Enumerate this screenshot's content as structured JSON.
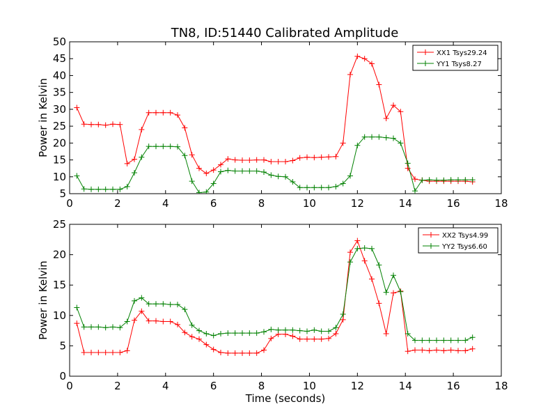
{
  "figure": {
    "title": "TN8, ID:51440 Calibrated Amplitude"
  },
  "chart_data": [
    {
      "type": "line",
      "title": "TN8, ID:51440 Calibrated Amplitude",
      "xlabel": "",
      "ylabel": "Power in Kelvin",
      "xlim": [
        0,
        18
      ],
      "ylim": [
        5,
        50
      ],
      "xticks": [
        "0",
        "2",
        "4",
        "6",
        "8",
        "10",
        "12",
        "14",
        "16",
        "18"
      ],
      "yticks": [
        "5",
        "10",
        "15",
        "20",
        "25",
        "30",
        "35",
        "40",
        "45",
        "50"
      ],
      "grid": false,
      "legend_position": "top-right",
      "x": [
        0.3,
        0.6,
        0.9,
        1.2,
        1.5,
        1.8,
        2.1,
        2.4,
        2.7,
        3.0,
        3.3,
        3.6,
        3.9,
        4.2,
        4.5,
        4.8,
        5.1,
        5.4,
        5.7,
        6.0,
        6.3,
        6.6,
        6.9,
        7.2,
        7.5,
        7.8,
        8.1,
        8.4,
        8.7,
        9.0,
        9.3,
        9.6,
        9.9,
        10.2,
        10.5,
        10.8,
        11.1,
        11.4,
        11.7,
        12.0,
        12.3,
        12.6,
        12.9,
        13.2,
        13.5,
        13.8,
        14.1,
        14.4,
        14.7,
        15.0,
        15.3,
        15.6,
        15.9,
        16.2,
        16.5,
        16.8
      ],
      "series": [
        {
          "name": "XX1 Tsys29.24",
          "color": "#ff0000",
          "values": [
            30.5,
            25.6,
            25.5,
            25.5,
            25.3,
            25.6,
            25.5,
            13.9,
            15.2,
            24.0,
            29.0,
            29.0,
            29.0,
            29.0,
            28.3,
            24.5,
            16.5,
            12.5,
            11.0,
            12.0,
            13.6,
            15.3,
            15.0,
            14.9,
            14.9,
            15.0,
            15.0,
            14.5,
            14.5,
            14.5,
            14.8,
            15.6,
            15.8,
            15.7,
            15.8,
            15.9,
            16.0,
            20.0,
            40.3,
            45.7,
            45.0,
            43.5,
            37.3,
            27.3,
            31.2,
            29.3,
            12.5,
            9.3,
            9.0,
            8.7,
            8.7,
            8.7,
            8.7,
            8.7,
            8.7,
            8.5
          ]
        },
        {
          "name": "YY1 Tsys8.27",
          "color": "#008000",
          "values": [
            10.3,
            6.4,
            6.3,
            6.3,
            6.3,
            6.3,
            6.3,
            7.1,
            11.2,
            15.8,
            19.0,
            19.0,
            19.0,
            19.0,
            18.9,
            16.3,
            8.7,
            5.3,
            5.5,
            8.0,
            11.5,
            11.9,
            11.7,
            11.7,
            11.7,
            11.7,
            11.4,
            10.5,
            10.1,
            10.0,
            8.5,
            6.8,
            6.8,
            6.8,
            6.8,
            6.8,
            7.1,
            8.0,
            10.3,
            19.3,
            21.8,
            21.8,
            21.8,
            21.6,
            21.4,
            20.0,
            14.0,
            5.8,
            9.0,
            9.1,
            9.0,
            9.0,
            9.1,
            9.1,
            9.1,
            9.1
          ]
        }
      ]
    },
    {
      "type": "line",
      "title": "",
      "xlabel": "Time (seconds)",
      "ylabel": "Power in Kelvin",
      "xlim": [
        0,
        18
      ],
      "ylim": [
        0,
        25
      ],
      "xticks": [
        "0",
        "2",
        "4",
        "6",
        "8",
        "10",
        "12",
        "14",
        "16",
        "18"
      ],
      "yticks": [
        "0",
        "5",
        "10",
        "15",
        "20",
        "25"
      ],
      "grid": false,
      "legend_position": "top-right",
      "x": [
        0.3,
        0.6,
        0.9,
        1.2,
        1.5,
        1.8,
        2.1,
        2.4,
        2.7,
        3.0,
        3.3,
        3.6,
        3.9,
        4.2,
        4.5,
        4.8,
        5.1,
        5.4,
        5.7,
        6.0,
        6.3,
        6.6,
        6.9,
        7.2,
        7.5,
        7.8,
        8.1,
        8.4,
        8.7,
        9.0,
        9.3,
        9.6,
        9.9,
        10.2,
        10.5,
        10.8,
        11.1,
        11.4,
        11.7,
        12.0,
        12.3,
        12.6,
        12.9,
        13.2,
        13.5,
        13.8,
        14.1,
        14.4,
        14.7,
        15.0,
        15.3,
        15.6,
        15.9,
        16.2,
        16.5,
        16.8
      ],
      "series": [
        {
          "name": "XX2 Tsys4.99",
          "color": "#ff0000",
          "values": [
            8.7,
            3.9,
            3.9,
            3.9,
            3.9,
            3.9,
            3.9,
            4.2,
            9.2,
            10.7,
            9.1,
            9.1,
            9.0,
            9.0,
            8.5,
            7.2,
            6.5,
            6.1,
            5.2,
            4.4,
            3.9,
            3.8,
            3.8,
            3.8,
            3.8,
            3.8,
            4.3,
            6.2,
            6.9,
            6.9,
            6.6,
            6.1,
            6.1,
            6.1,
            6.1,
            6.2,
            7.0,
            9.3,
            20.4,
            22.3,
            19.0,
            16.0,
            12.0,
            7.0,
            13.7,
            14.0,
            4.1,
            4.3,
            4.3,
            4.2,
            4.3,
            4.2,
            4.3,
            4.2,
            4.2,
            4.5
          ]
        },
        {
          "name": "YY2 Tsys6.60",
          "color": "#008000",
          "values": [
            11.3,
            8.1,
            8.1,
            8.1,
            8.0,
            8.1,
            8.0,
            9.0,
            12.4,
            12.9,
            11.9,
            11.9,
            11.9,
            11.8,
            11.8,
            11.0,
            8.4,
            7.5,
            7.0,
            6.7,
            7.0,
            7.1,
            7.1,
            7.1,
            7.1,
            7.1,
            7.3,
            7.7,
            7.6,
            7.6,
            7.6,
            7.5,
            7.4,
            7.6,
            7.4,
            7.4,
            8.0,
            10.2,
            18.8,
            21.0,
            21.1,
            21.0,
            18.3,
            13.8,
            16.6,
            13.9,
            7.0,
            5.9,
            5.9,
            5.9,
            5.9,
            5.9,
            5.9,
            5.9,
            5.9,
            6.4
          ]
        }
      ]
    }
  ]
}
